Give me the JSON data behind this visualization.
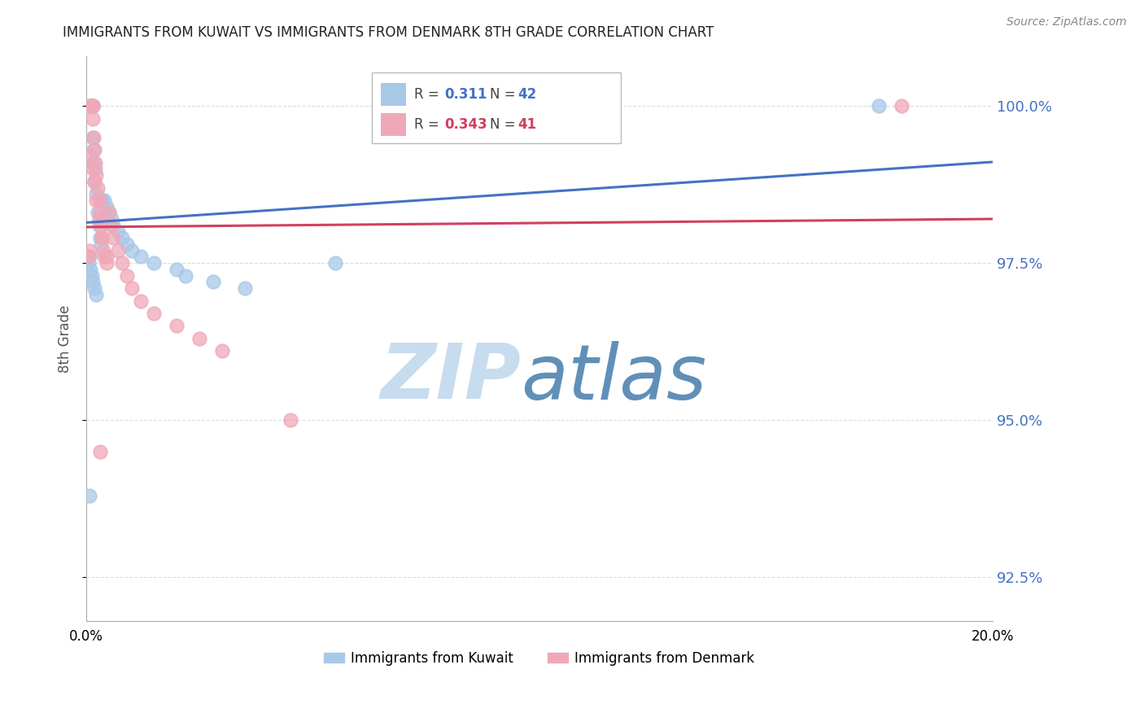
{
  "title": "IMMIGRANTS FROM KUWAIT VS IMMIGRANTS FROM DENMARK 8TH GRADE CORRELATION CHART",
  "source": "Source: ZipAtlas.com",
  "ylabel": "8th Grade",
  "xlim": [
    0.0,
    20.0
  ],
  "ylim": [
    91.8,
    100.8
  ],
  "yticks": [
    92.5,
    95.0,
    97.5,
    100.0
  ],
  "kuwait_R": 0.311,
  "kuwait_N": 42,
  "denmark_R": 0.343,
  "denmark_N": 41,
  "kuwait_color": "#A8C8E8",
  "denmark_color": "#F0A8B8",
  "trendline_kuwait_color": "#4472C4",
  "trendline_denmark_color": "#D04060",
  "grid_color": "#CCCCCC",
  "watermark_color_zip": "#C8DCF0",
  "watermark_color_atlas": "#6090B8",
  "background_color": "#FFFFFF",
  "title_color": "#222222",
  "axis_label_color": "#555555",
  "right_tick_color": "#4472C4",
  "kuwait_x": [
    0.05,
    0.08,
    0.1,
    0.1,
    0.12,
    0.13,
    0.14,
    0.15,
    0.15,
    0.16,
    0.17,
    0.18,
    0.2,
    0.22,
    0.25,
    0.28,
    0.3,
    0.32,
    0.35,
    0.4,
    0.45,
    0.5,
    0.55,
    0.6,
    0.7,
    0.8,
    0.9,
    1.0,
    1.2,
    1.5,
    2.0,
    2.2,
    2.8,
    3.5,
    5.5,
    0.1,
    0.12,
    0.15,
    0.18,
    0.22,
    0.08,
    17.5
  ],
  "kuwait_y": [
    97.5,
    97.6,
    100.0,
    100.0,
    100.0,
    100.0,
    100.0,
    100.0,
    99.5,
    99.3,
    99.1,
    98.8,
    99.0,
    98.6,
    98.3,
    98.1,
    97.9,
    97.8,
    98.5,
    98.5,
    98.4,
    98.3,
    98.2,
    98.1,
    98.0,
    97.9,
    97.8,
    97.7,
    97.6,
    97.5,
    97.4,
    97.3,
    97.2,
    97.1,
    97.5,
    97.4,
    97.3,
    97.2,
    97.1,
    97.0,
    93.8,
    100.0
  ],
  "denmark_x": [
    0.05,
    0.08,
    0.1,
    0.12,
    0.13,
    0.15,
    0.15,
    0.17,
    0.18,
    0.2,
    0.22,
    0.25,
    0.28,
    0.3,
    0.32,
    0.35,
    0.38,
    0.4,
    0.45,
    0.5,
    0.55,
    0.6,
    0.7,
    0.8,
    0.9,
    1.0,
    1.2,
    1.5,
    2.0,
    2.5,
    3.0,
    4.5,
    0.1,
    0.15,
    0.18,
    0.22,
    0.28,
    0.35,
    0.45,
    18.0,
    0.3
  ],
  "denmark_y": [
    97.6,
    97.7,
    100.0,
    100.0,
    100.0,
    100.0,
    99.8,
    99.5,
    99.3,
    99.1,
    98.9,
    98.7,
    98.5,
    98.3,
    98.1,
    97.9,
    97.7,
    97.6,
    97.5,
    98.3,
    98.1,
    97.9,
    97.7,
    97.5,
    97.3,
    97.1,
    96.9,
    96.7,
    96.5,
    96.3,
    96.1,
    95.0,
    99.2,
    99.0,
    98.8,
    98.5,
    98.2,
    97.9,
    97.6,
    100.0,
    94.5
  ]
}
